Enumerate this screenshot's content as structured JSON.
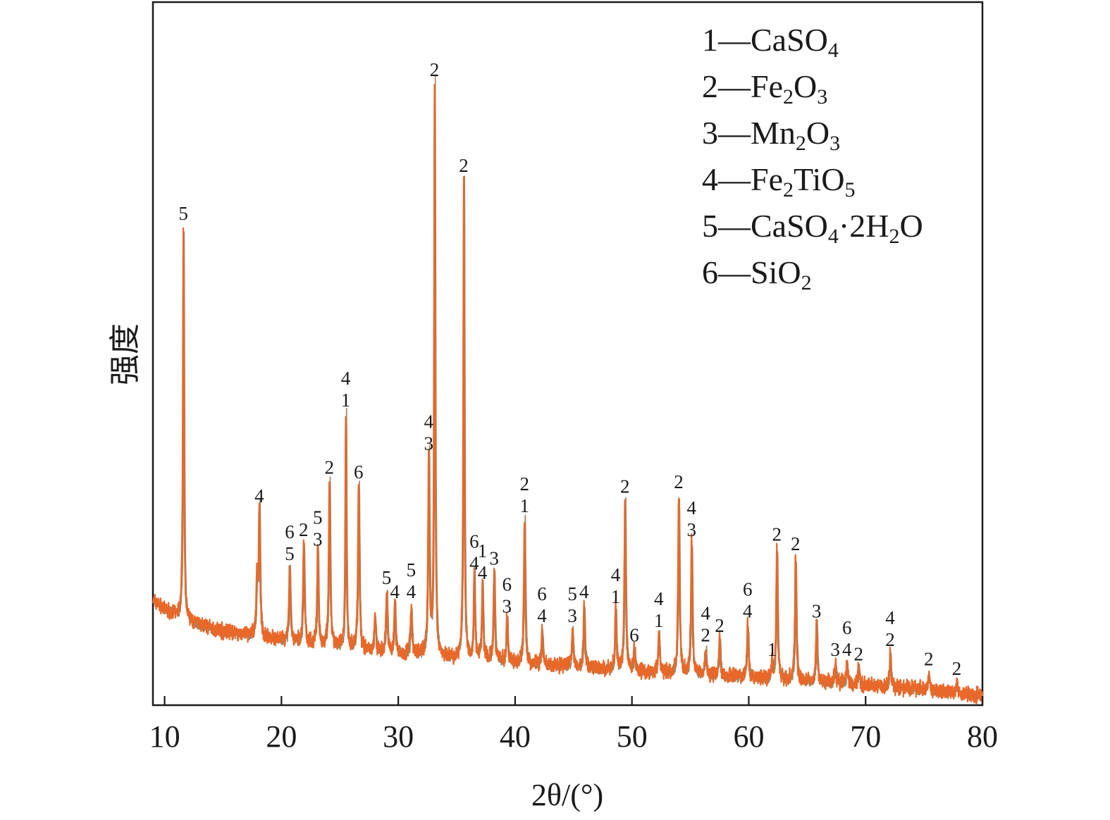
{
  "chart_data": {
    "type": "line",
    "title": "",
    "xlabel": "2θ/(°)",
    "ylabel": "强度",
    "xlim": [
      9,
      80
    ],
    "x_ticks": [
      "10",
      "20",
      "30",
      "40",
      "50",
      "60",
      "70",
      "80"
    ],
    "y_ticks": [],
    "grid": false,
    "legend_position": "top-right",
    "line_color": "#e8682a",
    "shadow_color": "#9a8866",
    "legend": [
      {
        "id": "1",
        "formula": "CaSO4",
        "parts": [
          [
            "",
            "1—CaSO"
          ],
          [
            "sub",
            "4"
          ]
        ]
      },
      {
        "id": "2",
        "formula": "Fe2O3",
        "parts": [
          [
            "",
            "2—Fe"
          ],
          [
            "sub",
            "2"
          ],
          [
            "",
            "O"
          ],
          [
            "sub",
            "3"
          ]
        ]
      },
      {
        "id": "3",
        "formula": "Mn2O3",
        "parts": [
          [
            "",
            "3—Mn"
          ],
          [
            "sub",
            "2"
          ],
          [
            "",
            "O"
          ],
          [
            "sub",
            "3"
          ]
        ]
      },
      {
        "id": "4",
        "formula": "Fe2TiO5",
        "parts": [
          [
            "",
            "4—Fe"
          ],
          [
            "sub",
            "2"
          ],
          [
            "",
            "TiO"
          ],
          [
            "sub",
            "5"
          ]
        ]
      },
      {
        "id": "5",
        "formula": "CaSO4·2H2O",
        "parts": [
          [
            "",
            "5—CaSO"
          ],
          [
            "sub",
            "4"
          ],
          [
            "",
            "·2H"
          ],
          [
            "sub",
            "2"
          ],
          [
            "",
            "O"
          ]
        ]
      },
      {
        "id": "6",
        "formula": "SiO2",
        "parts": [
          [
            "",
            "6—SiO"
          ],
          [
            "sub",
            "2"
          ]
        ]
      }
    ],
    "baseline": [
      [
        9,
        22
      ],
      [
        10,
        20
      ],
      [
        12,
        17.5
      ],
      [
        15,
        15.5
      ],
      [
        20,
        13.5
      ],
      [
        25,
        12
      ],
      [
        30,
        10.8
      ],
      [
        35,
        9.8
      ],
      [
        40,
        8.8
      ],
      [
        45,
        8
      ],
      [
        50,
        7.2
      ],
      [
        55,
        6.5
      ],
      [
        60,
        5.8
      ],
      [
        65,
        5
      ],
      [
        70,
        4.2
      ],
      [
        75,
        3.3
      ],
      [
        80,
        2
      ]
    ],
    "peaks": [
      {
        "x": 11.6,
        "y": 100,
        "labels": [
          "5"
        ]
      },
      {
        "x": 17.9,
        "y": 26,
        "labels": []
      },
      {
        "x": 18.1,
        "y": 41,
        "labels": [
          "4"
        ]
      },
      {
        "x": 20.7,
        "y": 29,
        "labels": [
          "6",
          "5"
        ]
      },
      {
        "x": 21.9,
        "y": 34,
        "labels": [
          "2"
        ]
      },
      {
        "x": 23.1,
        "y": 32,
        "labels": [
          "5",
          "3"
        ]
      },
      {
        "x": 24.1,
        "y": 47,
        "labels": [
          "2"
        ]
      },
      {
        "x": 25.5,
        "y": 61,
        "labels": [
          "4",
          "1"
        ]
      },
      {
        "x": 26.6,
        "y": 46,
        "labels": [
          "6"
        ]
      },
      {
        "x": 28.0,
        "y": 19,
        "labels": []
      },
      {
        "x": 29.0,
        "y": 24,
        "labels": [
          "5"
        ]
      },
      {
        "x": 29.7,
        "y": 21,
        "labels": [
          "4"
        ]
      },
      {
        "x": 31.1,
        "y": 21,
        "labels": [
          "5",
          "4"
        ]
      },
      {
        "x": 32.6,
        "y": 52,
        "labels": [
          "4",
          "3"
        ]
      },
      {
        "x": 33.1,
        "y": 130,
        "labels": [
          "2"
        ]
      },
      {
        "x": 35.6,
        "y": 110,
        "labels": [
          "2"
        ]
      },
      {
        "x": 36.5,
        "y": 27,
        "labels": [
          "6",
          "4"
        ]
      },
      {
        "x": 37.2,
        "y": 25,
        "labels": [
          "1",
          "4"
        ]
      },
      {
        "x": 38.2,
        "y": 28,
        "labels": [
          "3"
        ]
      },
      {
        "x": 39.3,
        "y": 18,
        "labels": [
          "6",
          "3"
        ]
      },
      {
        "x": 40.8,
        "y": 39,
        "labels": [
          "2",
          "1"
        ]
      },
      {
        "x": 42.3,
        "y": 16,
        "labels": [
          "6",
          "4"
        ]
      },
      {
        "x": 44.9,
        "y": 16,
        "labels": [
          "5",
          "3"
        ]
      },
      {
        "x": 45.9,
        "y": 21,
        "labels": [
          "4"
        ]
      },
      {
        "x": 48.6,
        "y": 20,
        "labels": [
          "4",
          "1"
        ]
      },
      {
        "x": 49.4,
        "y": 43,
        "labels": [
          "2"
        ]
      },
      {
        "x": 50.2,
        "y": 12,
        "labels": [
          "6"
        ]
      },
      {
        "x": 52.3,
        "y": 15,
        "labels": [
          "4",
          "1"
        ]
      },
      {
        "x": 54.0,
        "y": 44,
        "labels": [
          "2"
        ]
      },
      {
        "x": 55.1,
        "y": 34,
        "labels": [
          "4",
          "3"
        ]
      },
      {
        "x": 56.3,
        "y": 12,
        "labels": [
          "4",
          "2"
        ]
      },
      {
        "x": 57.5,
        "y": 14,
        "labels": [
          "2"
        ]
      },
      {
        "x": 59.9,
        "y": 17,
        "labels": [
          "6",
          "4"
        ]
      },
      {
        "x": 62.0,
        "y": 9,
        "labels": [
          "1"
        ]
      },
      {
        "x": 62.4,
        "y": 33,
        "labels": [
          "2"
        ]
      },
      {
        "x": 64.0,
        "y": 31,
        "labels": [
          "2"
        ]
      },
      {
        "x": 65.8,
        "y": 17,
        "labels": [
          "3"
        ]
      },
      {
        "x": 67.4,
        "y": 9,
        "labels": [
          "3"
        ]
      },
      {
        "x": 68.4,
        "y": 9,
        "labels": [
          "6",
          "4"
        ]
      },
      {
        "x": 69.4,
        "y": 8,
        "labels": [
          "2"
        ]
      },
      {
        "x": 72.1,
        "y": 11,
        "labels": [
          "4",
          "2"
        ]
      },
      {
        "x": 75.4,
        "y": 7,
        "labels": [
          "2"
        ]
      },
      {
        "x": 77.8,
        "y": 5,
        "labels": [
          "2"
        ]
      }
    ]
  }
}
